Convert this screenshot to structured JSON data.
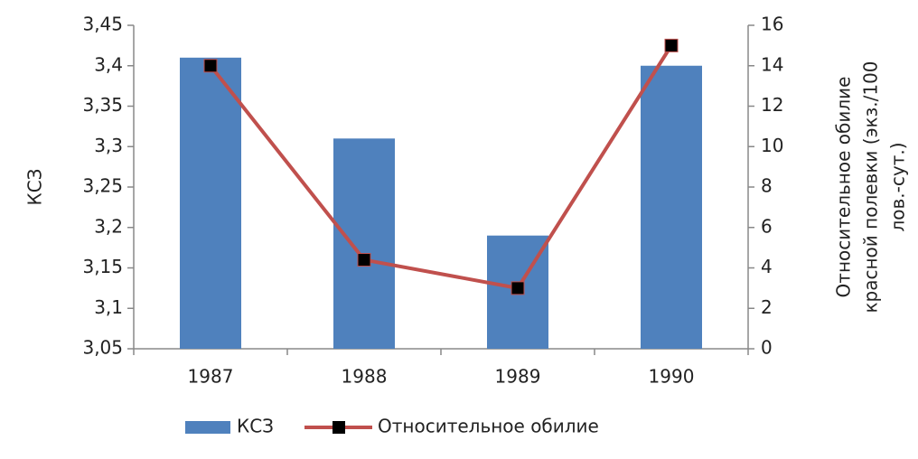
{
  "chart_data": {
    "type": "bar_line",
    "categories": [
      "1987",
      "1988",
      "1989",
      "1990"
    ],
    "series": [
      {
        "name": "КСЗ",
        "type": "bar",
        "color": "#4f81bd",
        "values": [
          3.41,
          3.31,
          3.19,
          3.4
        ]
      },
      {
        "name": "Относительное обилие",
        "type": "line",
        "axis": "y2",
        "color": "#c0504d",
        "marker_color": "#000000",
        "values": [
          14,
          4.4,
          3,
          15
        ]
      }
    ],
    "y_label": "КСЗ",
    "y2_label": [
      "Относительное обилие",
      "красной полевки (экз./100",
      "лов.-сут.)"
    ],
    "ylim": [
      3.05,
      3.45
    ],
    "yticks": [
      {
        "value": 3.05,
        "label": "3,05"
      },
      {
        "value": 3.1,
        "label": "3,1"
      },
      {
        "value": 3.15,
        "label": "3,15"
      },
      {
        "value": 3.2,
        "label": "3,2"
      },
      {
        "value": 3.25,
        "label": "3,25"
      },
      {
        "value": 3.3,
        "label": "3,3"
      },
      {
        "value": 3.35,
        "label": "3,35"
      },
      {
        "value": 3.4,
        "label": "3,4"
      },
      {
        "value": 3.45,
        "label": "3,45"
      }
    ],
    "y2lim": [
      0,
      16
    ],
    "y2ticks": [
      0,
      2,
      4,
      6,
      8,
      10,
      12,
      14,
      16
    ],
    "legend": "bottom"
  }
}
